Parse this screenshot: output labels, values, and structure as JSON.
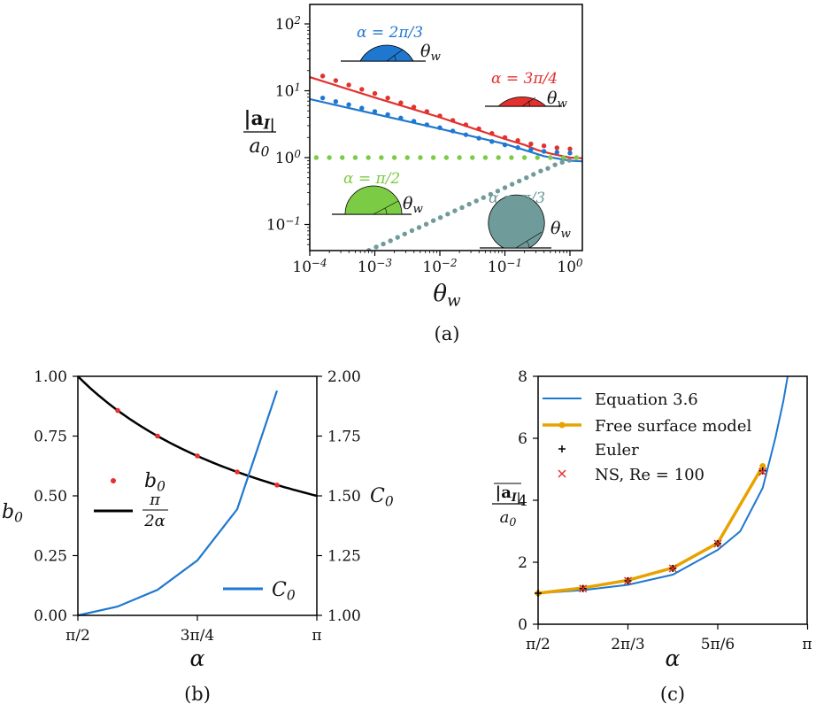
{
  "chart_data": [
    {
      "panel": "(a)",
      "type": "scatter",
      "xscale": "log",
      "yscale": "log",
      "xlim": [
        0.0001,
        1.55
      ],
      "ylim": [
        0.04,
        200
      ],
      "xlabel": "θ_w",
      "ylabel": {
        "numerator": "|a_I|",
        "denominator": "a_0"
      },
      "xticks": [
        "10^−4",
        "10^−3",
        "10^−2",
        "10^−1",
        "10^0"
      ],
      "yticks": [
        "10^−1",
        "10^0",
        "10^1",
        "10^2"
      ],
      "colors": {
        "blue": "#1f78cf",
        "red": "#e2312f",
        "green": "#7ccb45",
        "teal": "#6f9b9a"
      },
      "annotations": [
        {
          "text": "α = 2π/3",
          "color": "#1f78cf",
          "angle_label": "θ_w"
        },
        {
          "text": "α = 3π/4",
          "color": "#e2312f",
          "angle_label": "θ_w"
        },
        {
          "text": "α = π/2",
          "color": "#7ccb45",
          "angle_label": "θ_w"
        },
        {
          "text": "α = π/3",
          "color": "#6f9b9a",
          "angle_label": "θ_w"
        }
      ],
      "lines": [
        {
          "color": "red",
          "x": [
            0.0001,
            0.001,
            0.01,
            0.1,
            0.2,
            0.316,
            0.5,
            1.0,
            1.55
          ],
          "y": [
            16,
            7.9,
            4.0,
            1.9,
            1.55,
            1.3,
            1.15,
            1.0,
            0.98
          ]
        },
        {
          "color": "blue",
          "x": [
            0.0001,
            0.001,
            0.01,
            0.1,
            0.2,
            0.4,
            1.0,
            1.55
          ],
          "y": [
            7.5,
            4.5,
            2.7,
            1.6,
            1.3,
            1.05,
            0.9,
            0.88
          ]
        }
      ],
      "dots": [
        {
          "color": "red",
          "x": [
            0.000158,
            0.000251,
            0.000398,
            0.000631,
            0.001,
            0.00158,
            0.00251,
            0.00398,
            0.00631,
            0.01,
            0.0158,
            0.0251,
            0.0398,
            0.0631,
            0.1,
            0.158,
            0.251,
            0.398,
            0.631,
            1.0
          ],
          "y": [
            16.6,
            14.2,
            12.2,
            10.5,
            9.1,
            7.8,
            6.6,
            5.7,
            4.9,
            4.2,
            3.6,
            3.1,
            2.7,
            2.3,
            2.0,
            1.8,
            1.6,
            1.5,
            1.4,
            1.35
          ]
        },
        {
          "color": "blue",
          "x": [
            0.000158,
            0.000251,
            0.000398,
            0.000631,
            0.001,
            0.00158,
            0.00251,
            0.00398,
            0.00631,
            0.01,
            0.0158,
            0.0251,
            0.0398,
            0.0631,
            0.1,
            0.158,
            0.251,
            0.398,
            0.631,
            1.0
          ],
          "y": [
            7.8,
            6.9,
            6.2,
            5.5,
            4.9,
            4.4,
            3.9,
            3.5,
            3.1,
            2.8,
            2.5,
            2.2,
            1.95,
            1.74,
            1.55,
            1.41,
            1.32,
            1.24,
            1.2,
            1.17
          ]
        },
        {
          "color": "green",
          "x": [
            0.000126,
            0.0002,
            0.000316,
            0.000501,
            0.000794,
            0.00126,
            0.002,
            0.00316,
            0.00501,
            0.00794,
            0.0126,
            0.02,
            0.0316,
            0.0501,
            0.0794,
            0.126,
            0.2,
            0.316,
            0.501,
            0.794,
            1.26
          ],
          "y": [
            1,
            1,
            1,
            1,
            1,
            1,
            1,
            1,
            1,
            1,
            1,
            1,
            1,
            1,
            1,
            1,
            1,
            1,
            1,
            1,
            1
          ]
        },
        {
          "color": "teal",
          "x": [
            0.00063,
            0.00081,
            0.00105,
            0.00135,
            0.00174,
            0.00224,
            0.00288,
            0.00372,
            0.00479,
            0.00617,
            0.00794,
            0.0102,
            0.0132,
            0.017,
            0.0219,
            0.0282,
            0.0363,
            0.0468,
            0.0603,
            0.0776,
            0.1,
            0.129,
            0.166,
            0.214,
            0.275,
            0.355,
            0.457,
            0.589,
            0.759,
            0.977
          ],
          "y": [
            0.036,
            0.041,
            0.046,
            0.051,
            0.057,
            0.064,
            0.072,
            0.081,
            0.09,
            0.101,
            0.114,
            0.127,
            0.143,
            0.16,
            0.179,
            0.201,
            0.225,
            0.252,
            0.283,
            0.316,
            0.355,
            0.4,
            0.446,
            0.5,
            0.56,
            0.63,
            0.69,
            0.78,
            0.85,
            0.91
          ]
        }
      ]
    },
    {
      "panel": "(b)",
      "type": "line",
      "xlabel": "α",
      "ylabel_left": "b_0",
      "ylabel_right": "C_0",
      "xlim": [
        1.5708,
        3.1416
      ],
      "ylim_left": [
        0,
        1
      ],
      "ylim_right": [
        1,
        2
      ],
      "xticks": [
        "π/2",
        "3π/4",
        "π"
      ],
      "yticks_left": [
        "0.00",
        "0.25",
        "0.50",
        "0.75",
        "1.00"
      ],
      "yticks_right": [
        "1.00",
        "1.25",
        "1.50",
        "1.75",
        "2.00"
      ],
      "legend": {
        "b0": "b_0",
        "curve": {
          "numerator": "π",
          "denominator": "2α"
        },
        "c0": "C_0"
      },
      "series": [
        {
          "name": "b_0",
          "type": "scatter",
          "color": "#e2312f",
          "axis": "left",
          "x": [
            1.8326,
            2.0944,
            2.3562,
            2.618,
            2.8798
          ],
          "y": [
            0.857,
            0.75,
            0.667,
            0.6,
            0.545
          ]
        },
        {
          "name": "π/(2α)",
          "type": "line",
          "color": "#000000",
          "axis": "left",
          "function": "π/(2α)"
        },
        {
          "name": "C_0",
          "type": "line",
          "color": "#1f78cf",
          "axis": "right",
          "x": [
            1.5708,
            1.8326,
            2.0944,
            2.3562,
            2.618,
            2.8798
          ],
          "y": [
            1.0,
            1.037,
            1.107,
            1.23,
            1.444,
            1.94
          ]
        }
      ]
    },
    {
      "panel": "(c)",
      "type": "line",
      "xlabel": "α",
      "ylabel": {
        "numerator": "|a_I|",
        "denominator": "a_0"
      },
      "xlim": [
        1.5708,
        3.1416
      ],
      "ylim": [
        0,
        8
      ],
      "xticks": [
        "π/2",
        "2π/3",
        "5π/6",
        "π"
      ],
      "yticks": [
        "0",
        "2",
        "4",
        "6",
        "8"
      ],
      "series": [
        {
          "name": "Equation 3.6",
          "type": "line",
          "color": "#1f78cf",
          "x": [
            1.5708,
            1.8326,
            2.0944,
            2.3562,
            2.618,
            2.7489,
            2.8798,
            2.9531,
            3.0002,
            3.0253
          ],
          "y": [
            1.0,
            1.1,
            1.27,
            1.6,
            2.4,
            3.0,
            4.4,
            6.0,
            7.2,
            8.0
          ]
        },
        {
          "name": "Free surface model",
          "type": "line",
          "color": "#e8a200",
          "x": [
            1.5708,
            1.8326,
            2.0944,
            2.3562,
            2.618,
            2.8798
          ],
          "y": [
            1.0,
            1.17,
            1.42,
            1.82,
            2.62,
            5.1
          ]
        },
        {
          "name": "Euler",
          "type": "scatter",
          "marker": "+",
          "color": "#000000",
          "x": [
            1.5708,
            1.8326,
            2.0944,
            2.3562,
            2.618,
            2.8798
          ],
          "y": [
            1.0,
            1.15,
            1.4,
            1.8,
            2.6,
            4.95
          ]
        },
        {
          "name": "NS, Re = 100",
          "type": "scatter",
          "marker": "x",
          "color": "#e2312f",
          "x": [
            1.8326,
            2.0944,
            2.3562,
            2.618,
            2.8798
          ],
          "y": [
            1.15,
            1.4,
            1.8,
            2.6,
            4.92
          ]
        }
      ]
    }
  ]
}
